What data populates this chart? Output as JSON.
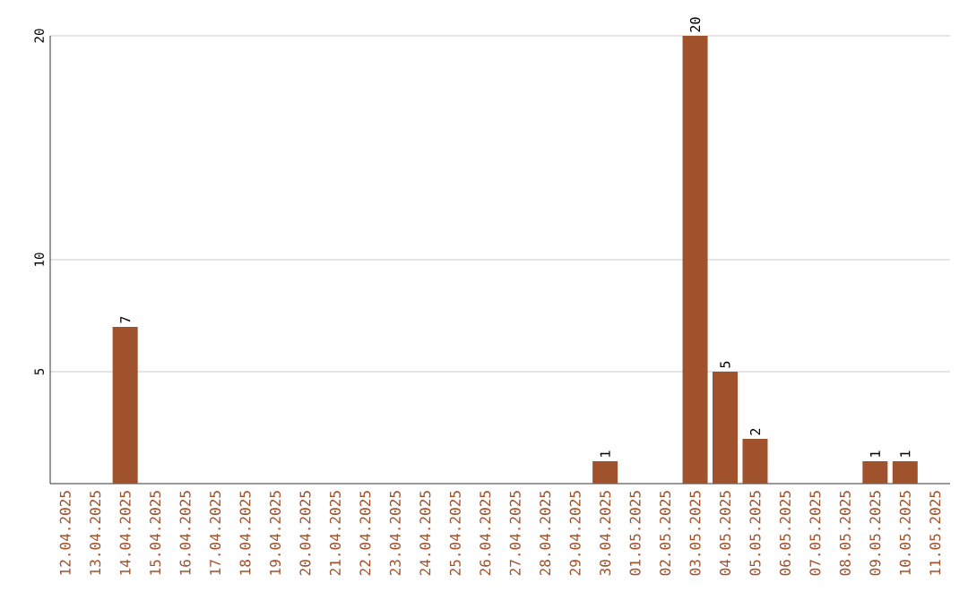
{
  "chart_data": {
    "type": "bar",
    "categories": [
      "12.04.2025",
      "13.04.2025",
      "14.04.2025",
      "15.04.2025",
      "16.04.2025",
      "17.04.2025",
      "18.04.2025",
      "19.04.2025",
      "20.04.2025",
      "21.04.2025",
      "22.04.2025",
      "23.04.2025",
      "24.04.2025",
      "25.04.2025",
      "26.04.2025",
      "27.04.2025",
      "28.04.2025",
      "29.04.2025",
      "30.04.2025",
      "01.05.2025",
      "02.05.2025",
      "03.05.2025",
      "04.05.2025",
      "05.05.2025",
      "06.05.2025",
      "07.05.2025",
      "08.05.2025",
      "09.05.2025",
      "10.05.2025",
      "11.05.2025"
    ],
    "values": [
      null,
      null,
      7,
      null,
      null,
      null,
      null,
      null,
      null,
      null,
      null,
      null,
      null,
      null,
      null,
      null,
      null,
      null,
      1,
      null,
      null,
      20,
      5,
      2,
      null,
      null,
      null,
      1,
      1,
      null
    ],
    "color": "#a0522d",
    "ylim": [
      0,
      20
    ],
    "yticks": [
      5,
      10,
      20
    ],
    "grid": "y",
    "data_labels": true
  }
}
